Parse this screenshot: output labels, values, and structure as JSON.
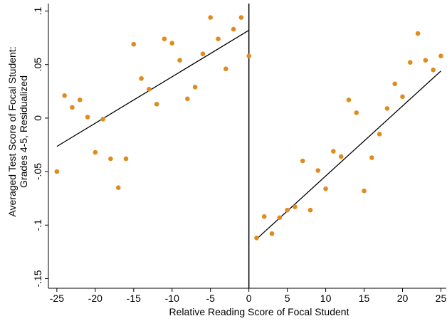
{
  "chart_data": {
    "type": "scatter",
    "x_label": "Relative Reading Score of Focal Student",
    "y_label": [
      "Averaged Test Score of Focal Student:",
      "Grades 4-5, Residualized"
    ],
    "x": [
      -25,
      -24,
      -23,
      -22,
      -21,
      -20,
      -19,
      -18,
      -17,
      -16,
      -15,
      -14,
      -13,
      -12,
      -11,
      -10,
      -9,
      -8,
      -7,
      -6,
      -5,
      -4,
      -3,
      -2,
      -1,
      0,
      1,
      2,
      3,
      4,
      5,
      6,
      7,
      8,
      9,
      10,
      11,
      12,
      13,
      14,
      15,
      16,
      17,
      18,
      19,
      20,
      21,
      22,
      23,
      24,
      25
    ],
    "series": [
      {
        "color": "#e08c1c",
        "values": [
          -0.05,
          0.021,
          0.01,
          0.017,
          0.001,
          -0.032,
          -0.001,
          -0.038,
          -0.065,
          -0.038,
          0.069,
          0.037,
          0.027,
          0.013,
          0.074,
          0.07,
          0.054,
          0.018,
          0.029,
          0.06,
          0.094,
          0.074,
          0.046,
          0.083,
          0.094,
          0.058,
          -0.112,
          -0.092,
          -0.108,
          -0.093,
          -0.086,
          -0.083,
          -0.04,
          -0.086,
          -0.049,
          -0.066,
          -0.031,
          -0.036,
          0.017,
          0.005,
          -0.068,
          -0.037,
          -0.015,
          0.009,
          0.032,
          0.02,
          0.052,
          0.079,
          0.054,
          0.045,
          0.058
        ]
      }
    ],
    "fit_lines": [
      {
        "color": "#000000",
        "x": [
          -25,
          0
        ],
        "values": [
          -0.0265,
          0.082
        ]
      },
      {
        "color": "#000000",
        "x": [
          1,
          25
        ],
        "values": [
          -0.113,
          0.044
        ]
      }
    ],
    "vline": 0,
    "xlim": [
      -26.1,
      25.7
    ],
    "ylim": [
      -0.159,
      0.107
    ],
    "xticks": [
      -25,
      -20,
      -15,
      -10,
      -5,
      0,
      5,
      10,
      15,
      20,
      25
    ],
    "yticks": [
      {
        "value": -0.15,
        "label": "-.15"
      },
      {
        "value": -0.1,
        "label": "-.1"
      },
      {
        "value": -0.05,
        "label": "-.05"
      },
      0,
      {
        "value": 0.05,
        "label": ".05"
      },
      {
        "value": 0.1,
        "label": ".1"
      }
    ]
  }
}
